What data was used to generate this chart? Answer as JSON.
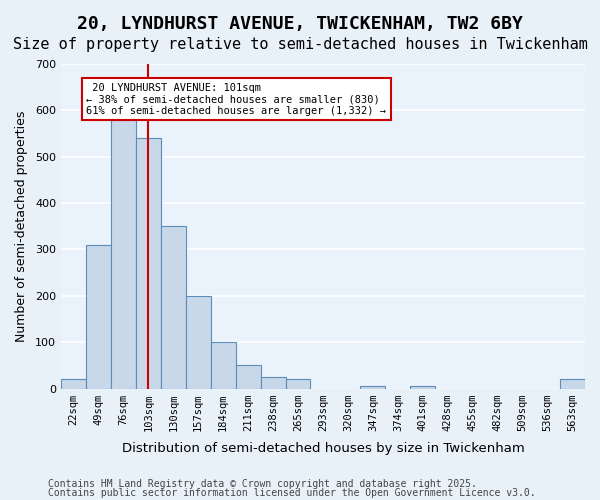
{
  "title": "20, LYNDHURST AVENUE, TWICKENHAM, TW2 6BY",
  "subtitle": "Size of property relative to semi-detached houses in Twickenham",
  "xlabel": "Distribution of semi-detached houses by size in Twickenham",
  "ylabel": "Number of semi-detached properties",
  "bins": [
    "22sqm",
    "49sqm",
    "76sqm",
    "103sqm",
    "130sqm",
    "157sqm",
    "184sqm",
    "211sqm",
    "238sqm",
    "265sqm",
    "293sqm",
    "320sqm",
    "347sqm",
    "374sqm",
    "401sqm",
    "428sqm",
    "455sqm",
    "482sqm",
    "509sqm",
    "536sqm",
    "563sqm"
  ],
  "values": [
    20,
    310,
    580,
    540,
    350,
    200,
    100,
    50,
    25,
    20,
    0,
    0,
    5,
    0,
    5,
    0,
    0,
    0,
    0,
    0,
    20
  ],
  "bar_color": "#c8d8e8",
  "bar_edge_color": "#5b8db8",
  "red_line_index": 3,
  "property_label": "20 LYNDHURST AVENUE: 101sqm",
  "smaller_pct": "38% of semi-detached houses are smaller (830)",
  "larger_pct": "61% of semi-detached houses are larger (1,332)",
  "annotation_box_color": "#ffffff",
  "annotation_box_edge": "#cc0000",
  "ylim": [
    0,
    700
  ],
  "yticks": [
    0,
    100,
    200,
    300,
    400,
    500,
    600,
    700
  ],
  "footer1": "Contains HM Land Registry data © Crown copyright and database right 2025.",
  "footer2": "Contains public sector information licensed under the Open Government Licence v3.0.",
  "bg_color": "#e8f0f8",
  "plot_bg_color": "#eaf2fb",
  "grid_color": "#ffffff",
  "title_fontsize": 13,
  "subtitle_fontsize": 11,
  "axis_label_fontsize": 9,
  "tick_fontsize": 7.5,
  "footer_fontsize": 7
}
